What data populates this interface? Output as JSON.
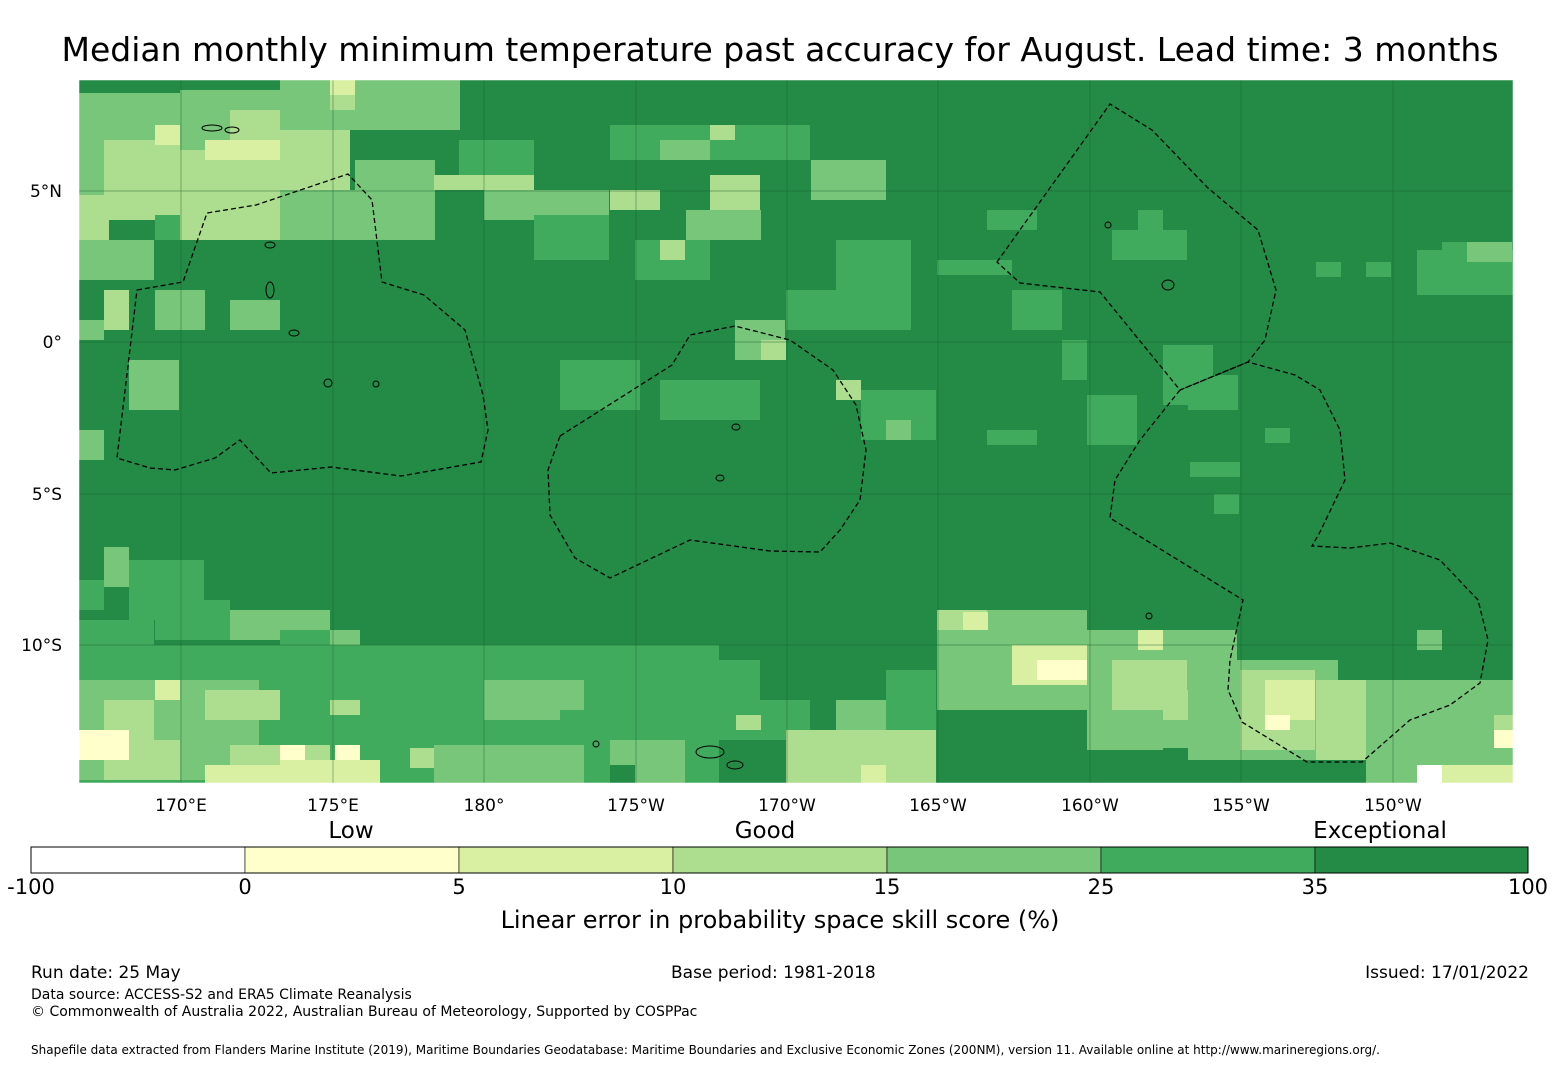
{
  "title": "Median monthly minimum temperature past accuracy for August. Lead time: 3 months",
  "map": {
    "lat_labels": [
      "5°N",
      "0°",
      "5°S",
      "10°S"
    ],
    "lon_labels": [
      "170°E",
      "175°E",
      "180°",
      "175°W",
      "170°W",
      "165°W",
      "160°W",
      "155°W",
      "150°W"
    ],
    "lat_range": [
      -14.5,
      8.5
    ],
    "lon_range": [
      166.5,
      -146.2
    ],
    "gridlines": true,
    "base_color": "#238b45"
  },
  "legend": {
    "categories": [
      "Low",
      "Good",
      "Exceptional"
    ],
    "ticks": [
      "-100",
      "0",
      "5",
      "10",
      "15",
      "25",
      "35",
      "100"
    ],
    "colors": [
      "#ffffff",
      "#ffffcc",
      "#d9f0a3",
      "#addd8e",
      "#78c679",
      "#41ab5d",
      "#238b45"
    ],
    "label": "Linear error in probability space skill score (%)"
  },
  "footer": {
    "run_date": "Run date: 25 May",
    "base_period": "Base period: 1981-2018",
    "issued": "Issued: 17/01/2022",
    "data_source": "Data source: ACCESS-S2 and ERA5 Climate Reanalysis",
    "copyright": "© Commonwealth of Australia 2022, Australian Bureau of Meteorology, Supported by COSPPac",
    "shapefile": "Shapefile data extracted from Flanders Marine Institute (2019), Maritime Boundaries Geodatabase: Maritime Boundaries and Exclusive Economic Zones (200NM), version 11. Available online at http://www.marineregions.org/."
  }
}
